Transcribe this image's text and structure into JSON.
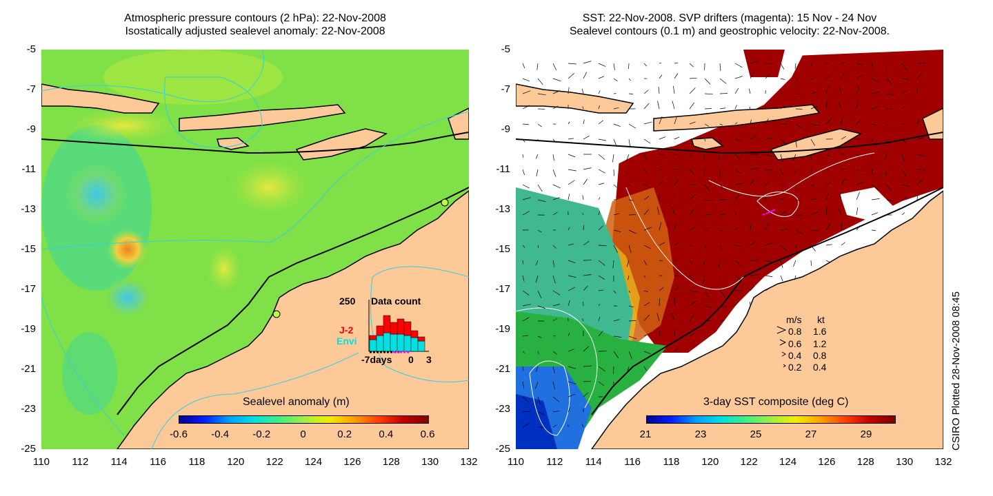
{
  "left_panel": {
    "title_line1": "Atmospheric pressure contours (2 hPa): 22-Nov-2008",
    "title_line2": "Isostatically adjusted sealevel anomaly: 22-Nov-2008",
    "colorbar_title": "Sealevel anomaly (m)",
    "colorbar_labels": [
      "-0.6",
      "-0.4",
      "-0.2",
      "0",
      "0.2",
      "0.4",
      "0.6"
    ],
    "inset": {
      "count_label": "250",
      "title": "Data count",
      "series1": "J-2",
      "series2": "Envi",
      "x_labels": [
        "-7days",
        "0",
        "3"
      ],
      "colors": {
        "series1": "#ff0000",
        "series2": "#00e0e0"
      }
    }
  },
  "right_panel": {
    "title_line1": "SST: 22-Nov-2008. SVP drifters (magenta): 15 Nov - 24 Nov",
    "title_line2": "Sealevel contours (0.1 m) and geostrophic velocity: 22-Nov-2008.",
    "colorbar_title": "3-day SST composite (deg C)",
    "colorbar_labels": [
      "21",
      "23",
      "25",
      "27",
      "29"
    ],
    "velocity_legend": {
      "header_ms": "m/s",
      "header_kt": "kt",
      "rows": [
        {
          "ms": "0.8",
          "kt": "1.6"
        },
        {
          "ms": "0.6",
          "kt": "1.2"
        },
        {
          "ms": "0.4",
          "kt": "0.8"
        },
        {
          "ms": "0.2",
          "kt": "0.4"
        }
      ]
    },
    "side_label": "CSIRO Plotted 28-Nov-2008 08:45"
  },
  "axes": {
    "y_labels": [
      "-5",
      "-7",
      "-9",
      "-11",
      "-13",
      "-15",
      "-17",
      "-19",
      "-21",
      "-23",
      "-25"
    ],
    "x_labels": [
      "110",
      "112",
      "114",
      "116",
      "118",
      "120",
      "122",
      "124",
      "126",
      "128",
      "130",
      "132"
    ]
  },
  "colors": {
    "land": "#fdc998",
    "sea_green": "#7fe040",
    "sst_hot": "#a00000",
    "contour_cyan": "#30d0e0"
  }
}
